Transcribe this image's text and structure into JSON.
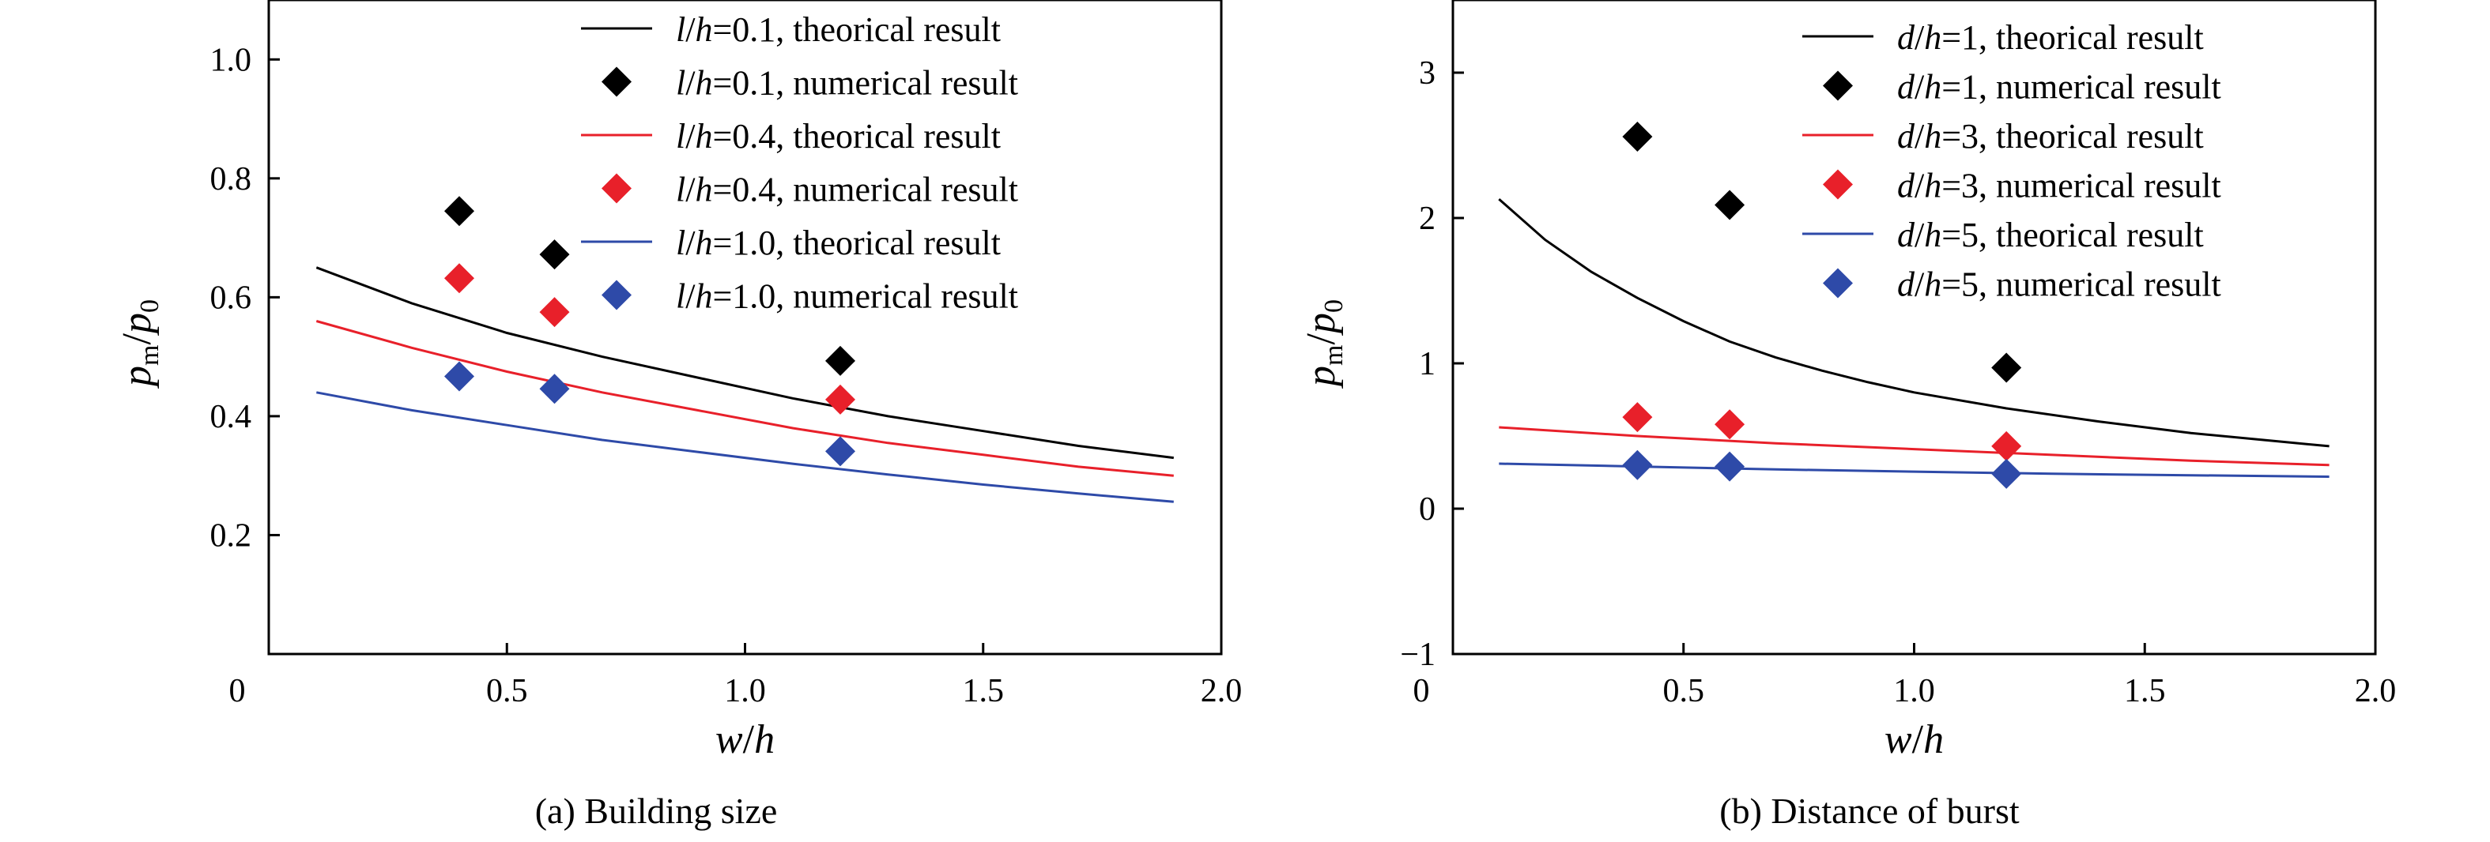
{
  "chart_data": [
    {
      "type": "line",
      "caption": "(a) Building size",
      "xlabel_num": "w",
      "xlabel_den": "h",
      "ylabel_num": "p",
      "ylabel_num_sub": "m",
      "ylabel_den": "p",
      "ylabel_den_sub": "0",
      "xlim": [
        0,
        2.0
      ],
      "ylim": [
        0.0,
        1.1
      ],
      "xticks": [
        0,
        0.5,
        1.0,
        1.5,
        2.0
      ],
      "xtick_labels": [
        "0",
        "0.5",
        "1.0",
        "1.5",
        "2.0"
      ],
      "yticks": [
        0.2,
        0.4,
        0.6,
        0.8,
        1.0
      ],
      "ytick_labels": [
        "0.2",
        "0.4",
        "0.6",
        "0.8",
        "1.0"
      ],
      "legend_position": "top-right",
      "legend_var": "l",
      "series": [
        {
          "name": "l/h=0.1, theorical result",
          "param": "=0.1, theorical result",
          "kind": "line",
          "color": "#000000",
          "x": [
            0.1,
            0.3,
            0.5,
            0.7,
            0.9,
            1.1,
            1.3,
            1.5,
            1.7,
            1.9
          ],
          "y": [
            0.65,
            0.59,
            0.54,
            0.5,
            0.465,
            0.43,
            0.4,
            0.375,
            0.35,
            0.33
          ]
        },
        {
          "name": "l/h=0.1, numerical result",
          "param": "=0.1, numerical result",
          "kind": "marker",
          "color": "#000000",
          "x": [
            0.4,
            0.6,
            1.2
          ],
          "y": [
            0.745,
            0.672,
            0.493
          ]
        },
        {
          "name": "l/h=0.4, theorical result",
          "param": "=0.4, theorical result",
          "kind": "line",
          "color": "#e8202a",
          "x": [
            0.1,
            0.3,
            0.5,
            0.7,
            0.9,
            1.1,
            1.3,
            1.5,
            1.7,
            1.9
          ],
          "y": [
            0.56,
            0.515,
            0.475,
            0.44,
            0.41,
            0.38,
            0.355,
            0.335,
            0.315,
            0.3
          ]
        },
        {
          "name": "l/h=0.4, numerical result",
          "param": "=0.4, numerical result",
          "kind": "marker",
          "color": "#e8202a",
          "x": [
            0.4,
            0.6,
            1.2
          ],
          "y": [
            0.632,
            0.575,
            0.428
          ]
        },
        {
          "name": "l/h=1.0, theorical result",
          "param": "=1.0, theorical result",
          "kind": "line",
          "color": "#2e4aa8",
          "x": [
            0.1,
            0.3,
            0.5,
            0.7,
            0.9,
            1.1,
            1.3,
            1.5,
            1.7,
            1.9
          ],
          "y": [
            0.44,
            0.41,
            0.385,
            0.36,
            0.34,
            0.32,
            0.302,
            0.285,
            0.27,
            0.256
          ]
        },
        {
          "name": "l/h=1.0, numerical result",
          "param": "=1.0, numerical result",
          "kind": "marker",
          "color": "#2e4aa8",
          "x": [
            0.4,
            0.6,
            1.2
          ],
          "y": [
            0.467,
            0.446,
            0.341
          ]
        }
      ]
    },
    {
      "type": "line",
      "caption": "(b) Distance of burst",
      "xlabel_num": "w",
      "xlabel_den": "h",
      "ylabel_num": "p",
      "ylabel_num_sub": "m",
      "ylabel_den": "p",
      "ylabel_den_sub": "0",
      "xlim": [
        0,
        2.0
      ],
      "ylim": [
        -1,
        3.5
      ],
      "xticks": [
        0,
        0.5,
        1.0,
        1.5,
        2.0
      ],
      "xtick_labels": [
        "0",
        "0.5",
        "1.0",
        "1.5",
        "2.0"
      ],
      "yticks": [
        -1,
        0,
        1,
        2,
        3
      ],
      "ytick_labels": [
        "−1",
        "0",
        "1",
        "2",
        "3"
      ],
      "legend_position": "top-right",
      "legend_var": "d",
      "series": [
        {
          "name": "d/h=1, theorical result",
          "param": "=1, theorical result",
          "kind": "line",
          "color": "#000000",
          "x": [
            0.1,
            0.2,
            0.3,
            0.4,
            0.5,
            0.6,
            0.7,
            0.8,
            0.9,
            1.0,
            1.2,
            1.4,
            1.6,
            1.8,
            1.9
          ],
          "y": [
            2.13,
            1.85,
            1.63,
            1.45,
            1.29,
            1.15,
            1.04,
            0.95,
            0.87,
            0.8,
            0.69,
            0.6,
            0.52,
            0.46,
            0.43
          ]
        },
        {
          "name": "d/h=1, numerical result",
          "param": "=1, numerical result",
          "kind": "marker",
          "color": "#000000",
          "x": [
            0.4,
            0.6,
            1.2
          ],
          "y": [
            2.56,
            2.09,
            0.97
          ]
        },
        {
          "name": "d/h=3, theorical result",
          "param": "=3, theorical result",
          "kind": "line",
          "color": "#e8202a",
          "x": [
            0.1,
            0.4,
            0.7,
            1.0,
            1.3,
            1.6,
            1.9
          ],
          "y": [
            0.56,
            0.5,
            0.45,
            0.41,
            0.37,
            0.33,
            0.3
          ]
        },
        {
          "name": "d/h=3, numerical result",
          "param": "=3, numerical result",
          "kind": "marker",
          "color": "#e8202a",
          "x": [
            0.4,
            0.6,
            1.2
          ],
          "y": [
            0.63,
            0.58,
            0.43
          ]
        },
        {
          "name": "d/h=5, theorical result",
          "param": "=5, theorical result",
          "kind": "line",
          "color": "#2e4aa8",
          "x": [
            0.1,
            0.4,
            0.7,
            1.0,
            1.3,
            1.6,
            1.9
          ],
          "y": [
            0.31,
            0.29,
            0.27,
            0.255,
            0.24,
            0.23,
            0.22
          ]
        },
        {
          "name": "d/h=5, numerical result",
          "param": "=5, numerical result",
          "kind": "marker",
          "color": "#2e4aa8",
          "x": [
            0.4,
            0.6,
            1.2
          ],
          "y": [
            0.3,
            0.29,
            0.24
          ]
        }
      ]
    }
  ]
}
